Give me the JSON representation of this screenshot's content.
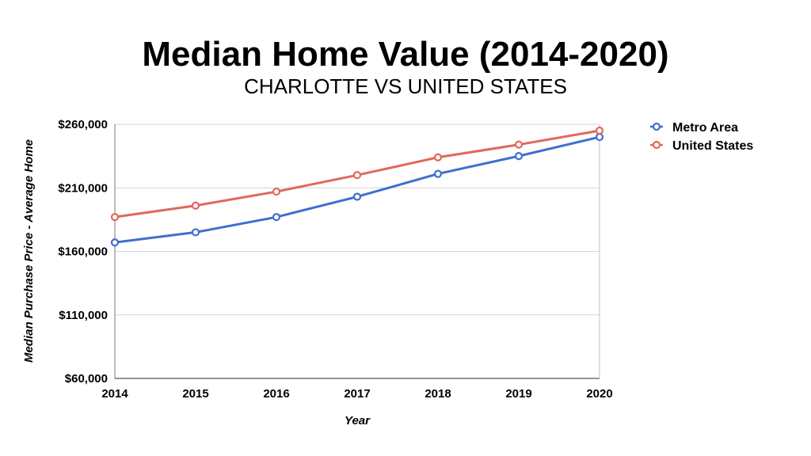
{
  "chart_data": {
    "type": "line",
    "title": "Median Home Value (2014-2020)",
    "subtitle": "CHARLOTTE VS UNITED STATES",
    "xlabel": "Year",
    "ylabel": "Median Purchase Price - Average Home",
    "categories": [
      "2014",
      "2015",
      "2016",
      "2017",
      "2018",
      "2019",
      "2020"
    ],
    "ylim": [
      60000,
      260000
    ],
    "yticks": [
      60000,
      110000,
      160000,
      210000,
      260000
    ],
    "ytick_labels": [
      "$60,000",
      "$110,000",
      "$160,000",
      "$210,000",
      "$260,000"
    ],
    "grid": true,
    "legend_position": "top-right",
    "series": [
      {
        "name": "Metro Area",
        "color": "#3f6fcf",
        "values": [
          167000,
          175000,
          187000,
          203000,
          221000,
          235000,
          250000
        ]
      },
      {
        "name": "United States",
        "color": "#e0685a",
        "values": [
          187000,
          196000,
          207000,
          220000,
          234000,
          244000,
          255000
        ]
      }
    ]
  }
}
